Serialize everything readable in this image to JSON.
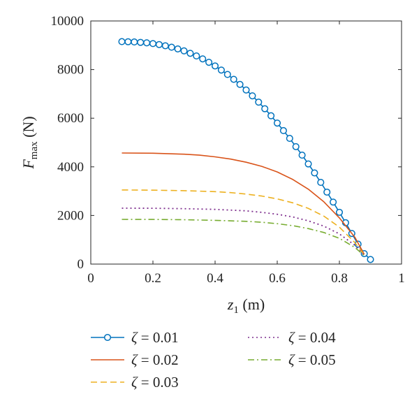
{
  "chart_data": {
    "type": "line",
    "xlabel": {
      "var": "z",
      "sub": "1",
      "unit": " (m)"
    },
    "ylabel": {
      "var": "F",
      "sub": "max",
      "unit": " (N)"
    },
    "xlim": [
      0,
      1
    ],
    "ylim": [
      0,
      10000
    ],
    "xticks": [
      0,
      0.2,
      0.4,
      0.6,
      0.8,
      1
    ],
    "xtick_labels": [
      "0",
      "0.2",
      "0.4",
      "0.6",
      "0.8",
      "1"
    ],
    "yticks": [
      0,
      2000,
      4000,
      6000,
      8000,
      10000
    ],
    "ytick_labels": [
      "0",
      "2000",
      "4000",
      "6000",
      "8000",
      "10000"
    ],
    "grid": false,
    "legend_position": "below",
    "series": [
      {
        "name": "ζ = 0.01",
        "color": "#0072BD",
        "style": "solid-circle",
        "x": [
          0.1,
          0.12,
          0.14,
          0.16,
          0.18,
          0.2,
          0.22,
          0.24,
          0.26,
          0.28,
          0.3,
          0.32,
          0.34,
          0.36,
          0.38,
          0.4,
          0.42,
          0.44,
          0.46,
          0.48,
          0.5,
          0.52,
          0.54,
          0.56,
          0.58,
          0.6,
          0.62,
          0.64,
          0.66,
          0.68,
          0.7,
          0.72,
          0.74,
          0.76,
          0.78,
          0.8,
          0.82,
          0.84,
          0.86,
          0.88,
          0.9
        ],
        "y": [
          9150,
          9145,
          9135,
          9120,
          9100,
          9070,
          9030,
          8980,
          8920,
          8850,
          8770,
          8670,
          8560,
          8440,
          8300,
          8150,
          7980,
          7800,
          7600,
          7390,
          7160,
          6920,
          6660,
          6390,
          6100,
          5800,
          5490,
          5170,
          4830,
          4480,
          4120,
          3750,
          3360,
          2960,
          2550,
          2130,
          1700,
          1260,
          820,
          430,
          190
        ]
      },
      {
        "name": "ζ = 0.02",
        "color": "#D95319",
        "style": "solid",
        "x": [
          0.1,
          0.2,
          0.3,
          0.35,
          0.4,
          0.45,
          0.5,
          0.55,
          0.6,
          0.65,
          0.7,
          0.75,
          0.8,
          0.85,
          0.88
        ],
        "y": [
          4570,
          4560,
          4520,
          4480,
          4410,
          4320,
          4190,
          4020,
          3790,
          3480,
          3080,
          2560,
          1900,
          1100,
          400
        ]
      },
      {
        "name": "ζ = 0.03",
        "color": "#EDB120",
        "style": "dashed",
        "x": [
          0.1,
          0.2,
          0.3,
          0.4,
          0.45,
          0.5,
          0.55,
          0.6,
          0.65,
          0.7,
          0.75,
          0.8,
          0.85,
          0.88
        ],
        "y": [
          3050,
          3040,
          3020,
          2980,
          2940,
          2880,
          2800,
          2680,
          2520,
          2290,
          1970,
          1520,
          880,
          380
        ]
      },
      {
        "name": "ζ = 0.04",
        "color": "#7E2F8E",
        "style": "dotted",
        "x": [
          0.1,
          0.2,
          0.3,
          0.4,
          0.5,
          0.55,
          0.6,
          0.65,
          0.7,
          0.75,
          0.8,
          0.85,
          0.88
        ],
        "y": [
          2300,
          2295,
          2280,
          2250,
          2190,
          2130,
          2050,
          1940,
          1780,
          1560,
          1240,
          770,
          360
        ]
      },
      {
        "name": "ζ = 0.05",
        "color": "#77AC30",
        "style": "dashdot",
        "x": [
          0.1,
          0.2,
          0.3,
          0.4,
          0.5,
          0.55,
          0.6,
          0.65,
          0.7,
          0.75,
          0.8,
          0.85,
          0.88
        ],
        "y": [
          1840,
          1835,
          1825,
          1800,
          1760,
          1720,
          1660,
          1580,
          1460,
          1300,
          1060,
          680,
          350
        ]
      }
    ]
  }
}
